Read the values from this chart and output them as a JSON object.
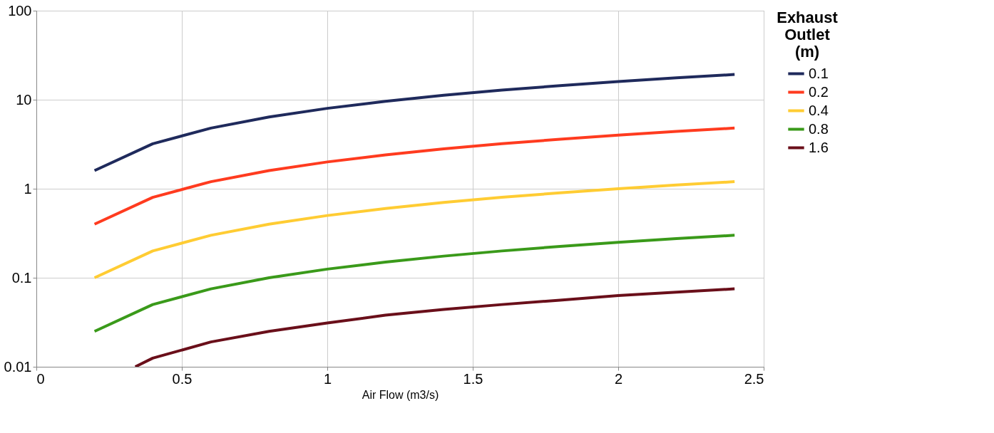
{
  "chart_data": {
    "type": "line",
    "xlabel": "Air Flow (m3/s)",
    "legend_title": "Exhaust Outlet (m)",
    "x": [
      0.2,
      0.4,
      0.6,
      0.8,
      1.0,
      1.2,
      1.4,
      1.6,
      1.8,
      2.0,
      2.2,
      2.4
    ],
    "series": [
      {
        "name": "0.1",
        "color": "#1f2a5c",
        "values": [
          1.6,
          3.2,
          4.8,
          6.4,
          8,
          9.6,
          11.2,
          12.8,
          14.4,
          16,
          17.6,
          19.2
        ]
      },
      {
        "name": "0.2",
        "color": "#ff3b1f",
        "values": [
          0.4,
          0.8,
          1.2,
          1.6,
          2,
          2.4,
          2.8,
          3.2,
          3.6,
          4,
          4.4,
          4.8
        ]
      },
      {
        "name": "0.4",
        "color": "#ffcc33",
        "values": [
          0.1,
          0.2,
          0.3,
          0.4,
          0.5,
          0.6,
          0.7,
          0.8,
          0.9,
          1.0,
          1.1,
          1.2
        ]
      },
      {
        "name": "0.8",
        "color": "#3a9a1a",
        "values": [
          0.025,
          0.05,
          0.075,
          0.1,
          0.125,
          0.15,
          0.175,
          0.2,
          0.225,
          0.25,
          0.275,
          0.3
        ]
      },
      {
        "name": "1.6",
        "color": "#6a0f1a",
        "x": [
          0.34,
          0.4,
          0.6,
          0.8,
          1.0,
          1.2,
          1.4,
          1.6,
          1.8,
          2.0,
          2.2,
          2.4
        ],
        "values": [
          0.01,
          0.0125,
          0.019,
          0.025,
          0.031,
          0.038,
          0.044,
          0.05,
          0.056,
          0.063,
          0.069,
          0.075
        ]
      }
    ],
    "xlim": [
      0,
      2.5
    ],
    "xticks": [
      0,
      0.5,
      1,
      1.5,
      2,
      2.5
    ],
    "ylim": [
      0.01,
      100
    ],
    "yticks": [
      0.01,
      0.1,
      1,
      10,
      100
    ],
    "log": "y",
    "grid": true,
    "legend": "right",
    "line_style": "solid",
    "marker": "none"
  }
}
